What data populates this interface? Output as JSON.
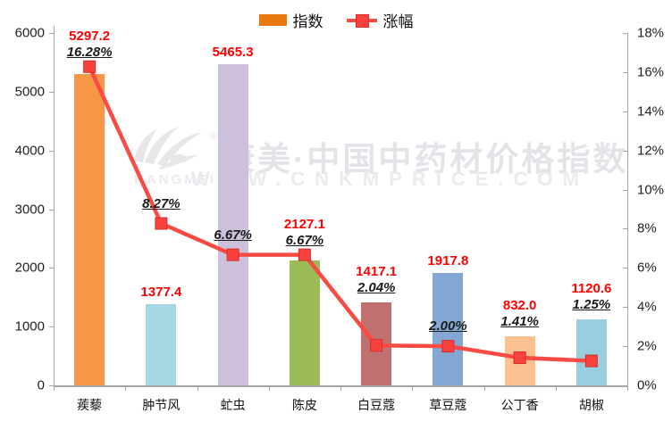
{
  "legend": {
    "position": "top-center",
    "items": [
      {
        "label": "指数",
        "type": "bar-swatch",
        "color": "#e8790f"
      },
      {
        "label": "涨幅",
        "type": "line-marker",
        "color": "#f84b43"
      }
    ]
  },
  "watermark": {
    "brand_cn": "康美·中国中药材价格指数",
    "brand_url": "WWW.CNKMPRICE.COM",
    "logo_text": "KANGMEI",
    "registered_mark": "®",
    "color": "#e6e3e8"
  },
  "chart_data": {
    "type": "bar+line",
    "categories": [
      "蒺藜",
      "肿节风",
      "虻虫",
      "陈皮",
      "白豆蔻",
      "草豆蔻",
      "公丁香",
      "胡椒"
    ],
    "series": [
      {
        "name": "指数",
        "type": "bar",
        "axis": "left",
        "values": [
          5297.2,
          1377.4,
          5465.3,
          2127.1,
          1417.1,
          1917.8,
          832.0,
          1120.6
        ],
        "value_labels": [
          "5297.2",
          "1377.4",
          "5465.3",
          "2127.1",
          "1417.1",
          "1917.8",
          "832.0",
          "1120.6"
        ],
        "bar_colors": [
          "#f79646",
          "#a6d7e4",
          "#ccc0da",
          "#9bbb59",
          "#c0716f",
          "#84a7d4",
          "#fac090",
          "#98cedd"
        ]
      },
      {
        "name": "涨幅",
        "type": "line",
        "axis": "right",
        "values": [
          16.28,
          8.27,
          6.67,
          6.67,
          2.04,
          2.0,
          1.41,
          1.25
        ],
        "value_labels": [
          "16.28%",
          "8.27%",
          "6.67%",
          "6.67%",
          "2.04%",
          "2.00%",
          "1.41%",
          "1.25%"
        ],
        "color": "#f84b43",
        "marker": "square",
        "marker_fill": "#f9423e",
        "marker_stroke": "#d92b2b"
      }
    ],
    "left_axis": {
      "min": 0,
      "max": 6000,
      "step": 1000,
      "ticks": [
        "0",
        "1000",
        "2000",
        "3000",
        "4000",
        "5000",
        "6000"
      ]
    },
    "right_axis": {
      "min": 0,
      "max": 18,
      "step": 2,
      "ticks": [
        "0%",
        "2%",
        "4%",
        "6%",
        "8%",
        "10%",
        "12%",
        "14%",
        "16%",
        "18%"
      ]
    },
    "grid": false,
    "title": "",
    "xlabel": "",
    "ylabel": ""
  }
}
